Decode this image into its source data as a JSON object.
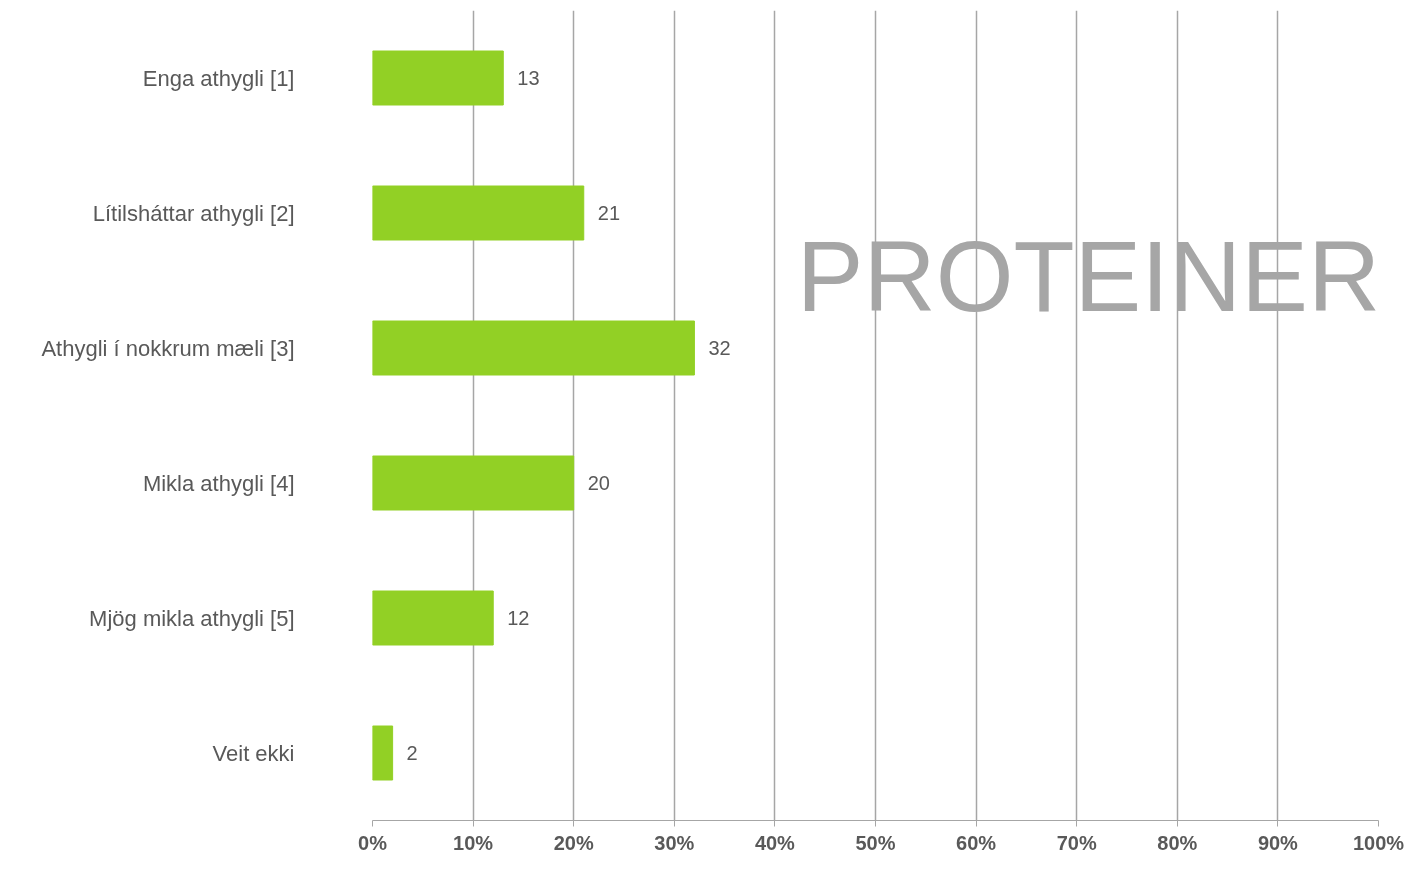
{
  "chart_data": {
    "type": "bar",
    "orientation": "horizontal",
    "title": "PROTEINER",
    "categories": [
      "Enga athygli [1]",
      "Lítilsháttar athygli [2]",
      "Athygli í nokkrum mæli [3]",
      "Mikla athygli [4]",
      "Mjög mikla athygli [5]",
      "Veit ekki"
    ],
    "values": [
      13,
      21,
      32,
      20,
      12,
      2
    ],
    "color": "#92d025",
    "xlim": [
      0,
      100
    ],
    "xticks": [
      {
        "value": 0,
        "label": "0%"
      },
      {
        "value": 10,
        "label": "10%"
      },
      {
        "value": 20,
        "label": "20%"
      },
      {
        "value": 30,
        "label": "30%"
      },
      {
        "value": 40,
        "label": "40%"
      },
      {
        "value": 50,
        "label": "50%"
      },
      {
        "value": 60,
        "label": "60%"
      },
      {
        "value": 70,
        "label": "70%"
      },
      {
        "value": 80,
        "label": "80%"
      },
      {
        "value": 90,
        "label": "90%"
      },
      {
        "value": 100,
        "label": "100%"
      }
    ],
    "grid": "x",
    "data_labels": true
  }
}
